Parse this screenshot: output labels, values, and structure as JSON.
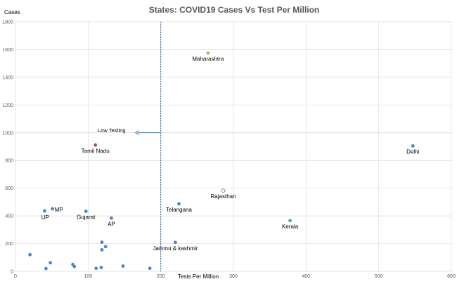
{
  "chart_data": {
    "type": "scatter",
    "title": "States: COVID19 Cases Vs Test Per Million",
    "xlabel": "Tests Per Million",
    "ylabel": "Cases",
    "xlim": [
      0,
      600
    ],
    "ylim": [
      0,
      1800
    ],
    "xticks": [
      0,
      100,
      200,
      300,
      400,
      500,
      600
    ],
    "yticks": [
      0,
      200,
      400,
      600,
      800,
      1000,
      1200,
      1400,
      1600,
      1800
    ],
    "grid": true,
    "colors": {
      "default": "#4a86c6",
      "tamil_nadu": "#a0525a",
      "maharashtra": "#a9c25c",
      "kerala": "#5aa58a",
      "rajasthan_fill": "#ffffff",
      "rajasthan_stroke": "#4a86c6",
      "threshold_line": "#2e5b91"
    },
    "points": [
      {
        "name": "Maharashtra",
        "x": 265,
        "y": 1575,
        "label": "Maharashtra",
        "color": "maharashtra",
        "label_pos": "below"
      },
      {
        "name": "Delhi",
        "x": 547,
        "y": 905,
        "label": "Delhi",
        "color": "default",
        "label_pos": "below"
      },
      {
        "name": "Tamil Nadu",
        "x": 110,
        "y": 911,
        "label": "Tamil Nadu",
        "color": "tamil_nadu",
        "label_pos": "below"
      },
      {
        "name": "Rajasthan",
        "x": 286,
        "y": 582,
        "label": "Rajasthan",
        "color": "rajasthan",
        "label_pos": "below"
      },
      {
        "name": "Telangana",
        "x": 225,
        "y": 487,
        "label": "Telangana",
        "color": "default",
        "label_pos": "below"
      },
      {
        "name": "Kerala",
        "x": 378,
        "y": 366,
        "label": "Kerala",
        "color": "kerala",
        "label_pos": "below"
      },
      {
        "name": "UP",
        "x": 40,
        "y": 436,
        "label": "UP",
        "color": "default",
        "label_pos": "belowleft"
      },
      {
        "name": "MP",
        "x": 51,
        "y": 451,
        "label": "MP",
        "color": "default",
        "label_pos": "right"
      },
      {
        "name": "Gujarat",
        "x": 97,
        "y": 433,
        "label": "Gujarat",
        "color": "default",
        "label_pos": "below"
      },
      {
        "name": "AP",
        "x": 132,
        "y": 384,
        "label": "AP",
        "color": "default",
        "label_pos": "below"
      },
      {
        "name": "Jammu & kashmir",
        "x": 220,
        "y": 209,
        "label": "Jammu & kashmir",
        "color": "default",
        "label_pos": "below"
      },
      {
        "name": "",
        "x": 20,
        "y": 120,
        "color": "default"
      },
      {
        "name": "",
        "x": 42,
        "y": 20,
        "color": "default"
      },
      {
        "name": "",
        "x": 48,
        "y": 62,
        "color": "default"
      },
      {
        "name": "",
        "x": 79,
        "y": 50,
        "color": "default"
      },
      {
        "name": "",
        "x": 81,
        "y": 35,
        "color": "default"
      },
      {
        "name": "",
        "x": 111,
        "y": 22,
        "color": "default"
      },
      {
        "name": "",
        "x": 118,
        "y": 28,
        "color": "default"
      },
      {
        "name": "",
        "x": 119,
        "y": 210,
        "color": "default"
      },
      {
        "name": "",
        "x": 119,
        "y": 155,
        "color": "default"
      },
      {
        "name": "",
        "x": 124,
        "y": 178,
        "color": "default"
      },
      {
        "name": "",
        "x": 148,
        "y": 38,
        "color": "default"
      },
      {
        "name": "",
        "x": 185,
        "y": 22,
        "color": "default"
      }
    ],
    "threshold": {
      "x": 200,
      "label": "Low Testing",
      "label_y": 1000,
      "arrow_to_x": 165
    }
  }
}
